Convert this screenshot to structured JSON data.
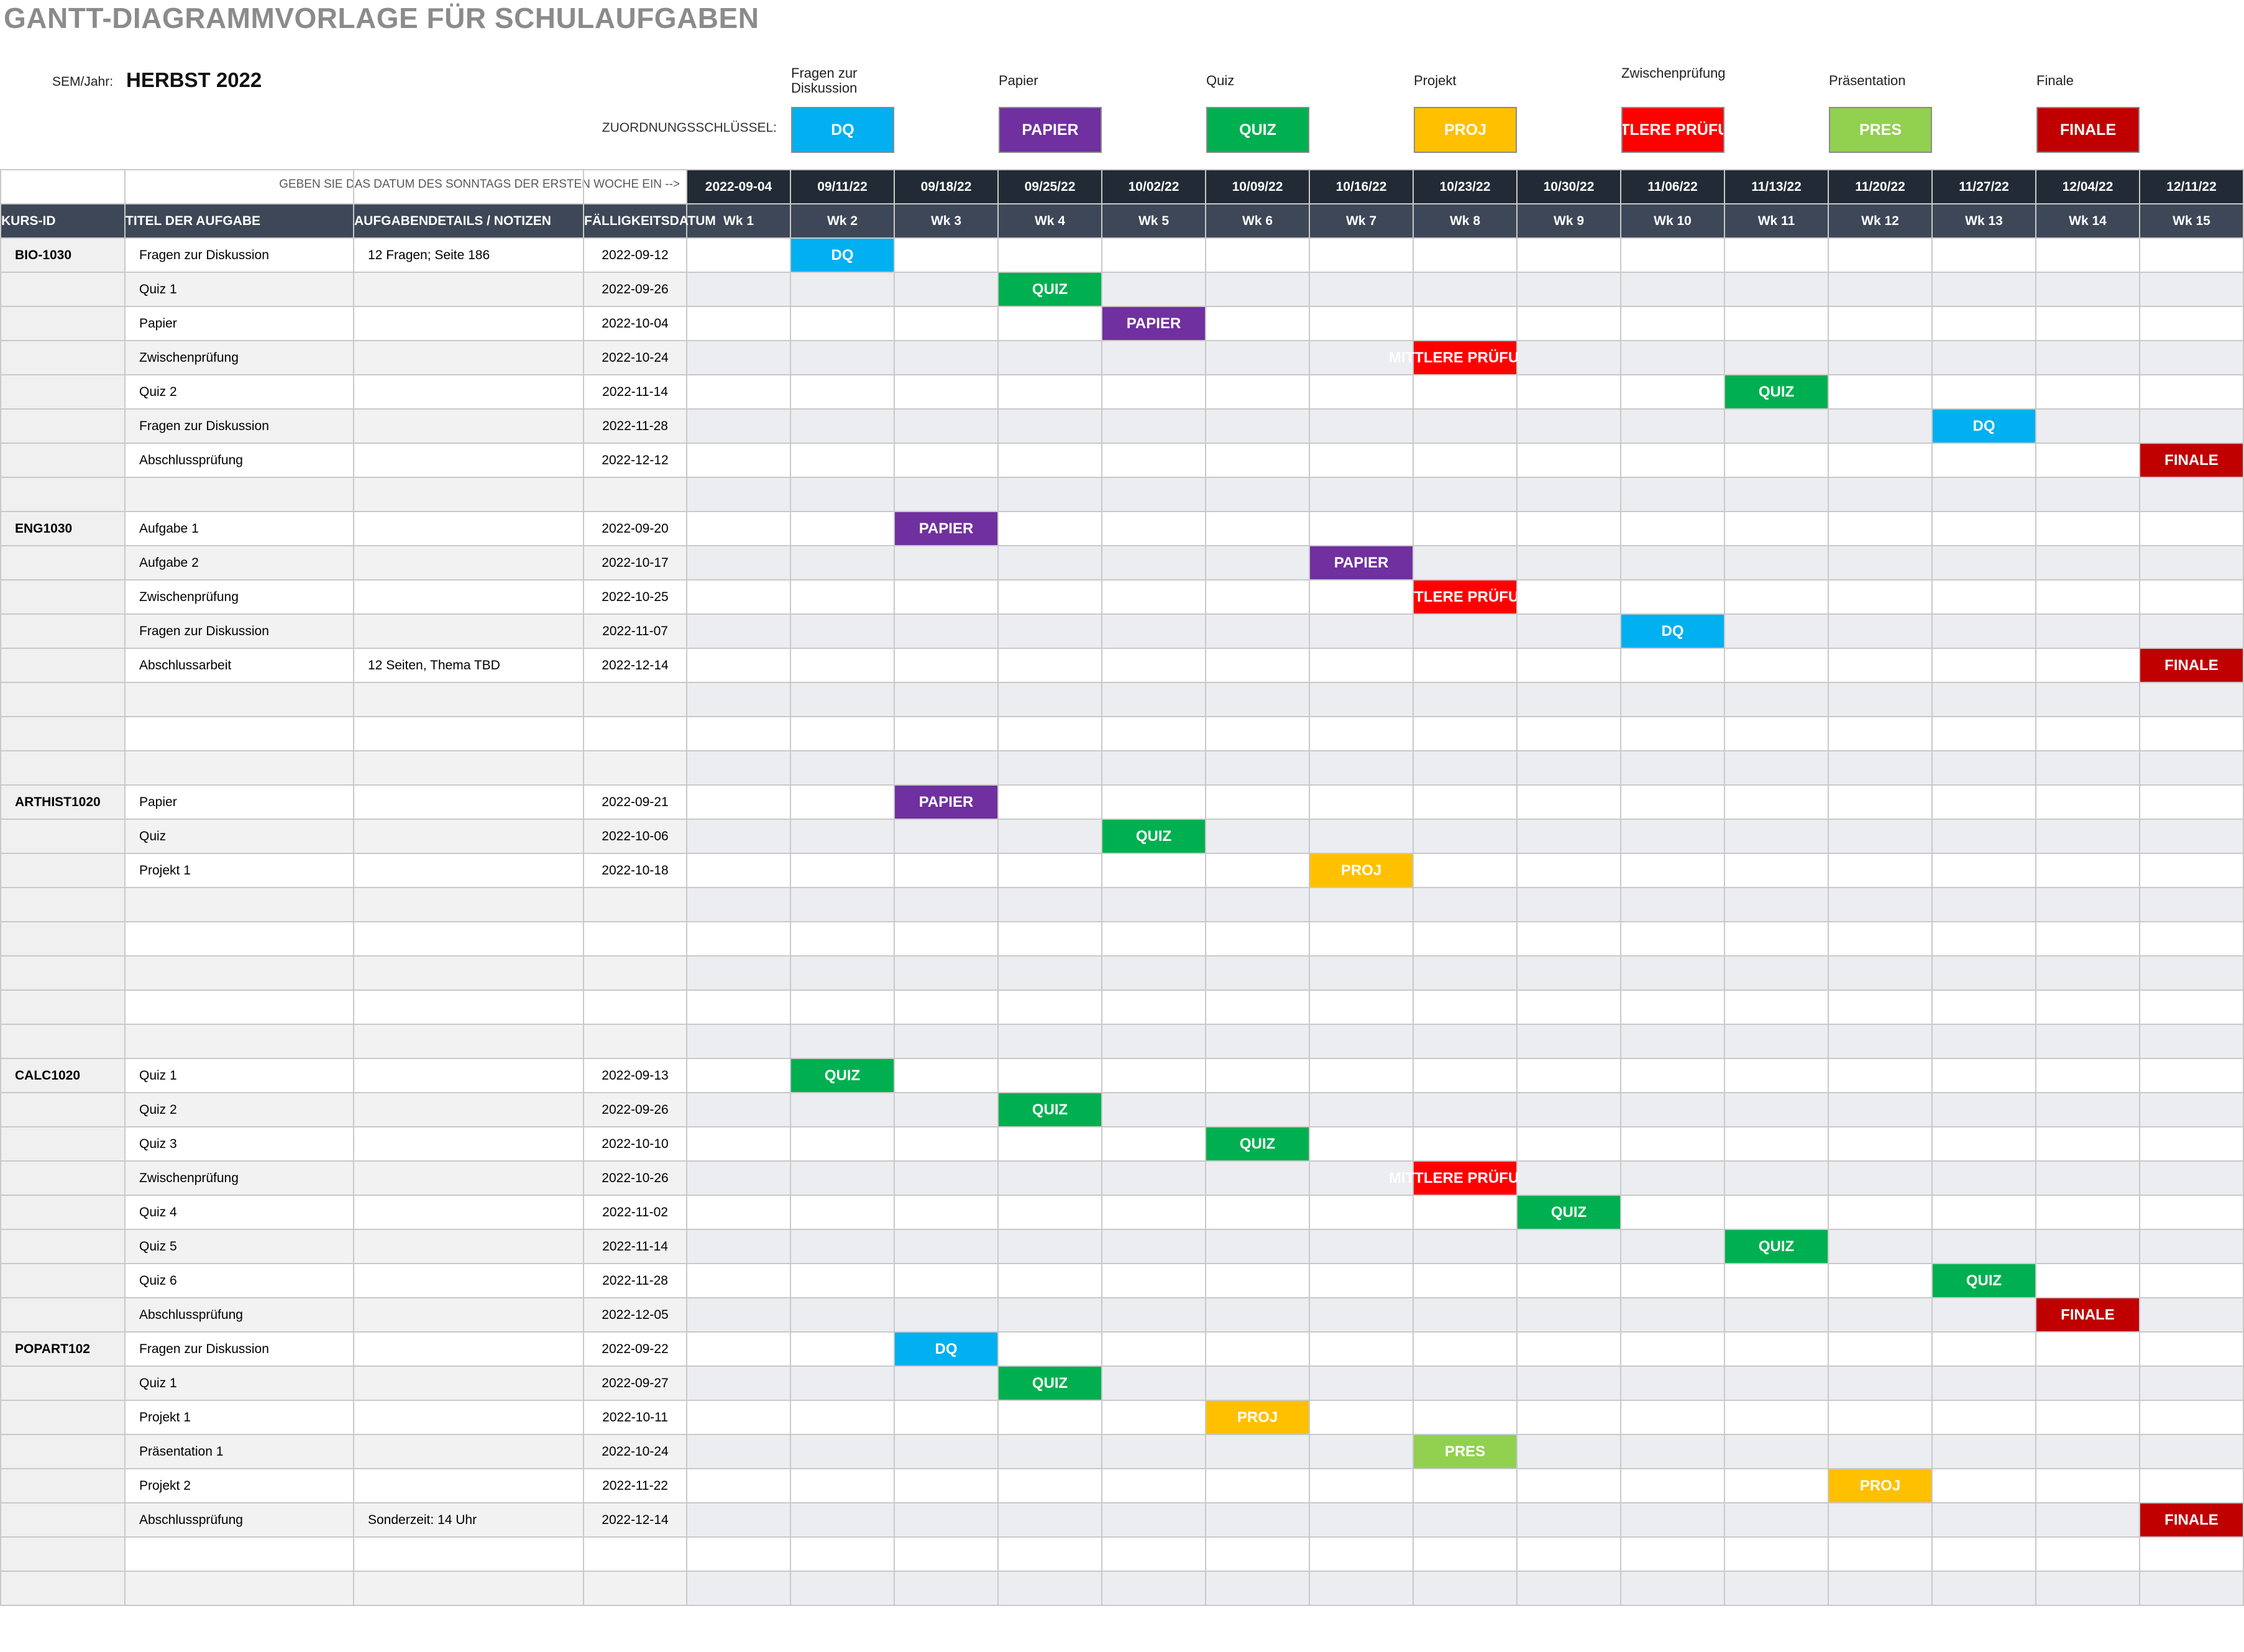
{
  "title": "GANTT-DIAGRAMMVORLAGE FÜR SCHULAUFGABEN",
  "semester_label": "SEM/Jahr:",
  "semester_value": "HERBST 2022",
  "key_label": "ZUORDNUNGSSCHLÜSSEL:",
  "week_instruction": "GEBEN SIE DAS DATUM DES SONNTAGS DER ERSTEN WOCHE EIN -->",
  "legend": [
    {
      "name": "Fragen zur Diskussion",
      "code": "DQ",
      "color": "#00b0f0"
    },
    {
      "name": "Papier",
      "code": "PAPIER",
      "color": "#7030a0"
    },
    {
      "name": "Quiz",
      "code": "QUIZ",
      "color": "#00b050"
    },
    {
      "name": "Projekt",
      "code": "PROJ",
      "color": "#ffc000"
    },
    {
      "name": "Zwischenprüfung",
      "code": "MITTLERE PRÜFUNG",
      "color": "#ff0000"
    },
    {
      "name": "Präsentation",
      "code": "PRES",
      "color": "#92d050"
    },
    {
      "name": "Finale",
      "code": "FINALE",
      "color": "#c00000"
    }
  ],
  "columns": [
    "KURS-ID",
    "TITEL DER AUFGABE",
    "AUFGABENDETAILS / NOTIZEN",
    "FÄLLIGKEITSDATUM"
  ],
  "week_dates": [
    "2022-09-04",
    "09/11/22",
    "09/18/22",
    "09/25/22",
    "10/02/22",
    "10/09/22",
    "10/16/22",
    "10/23/22",
    "10/30/22",
    "11/06/22",
    "11/13/22",
    "11/20/22",
    "11/27/22",
    "12/04/22",
    "12/11/22"
  ],
  "weeks": [
    "Wk 1",
    "Wk 2",
    "Wk 3",
    "Wk 4",
    "Wk 5",
    "Wk 6",
    "Wk 7",
    "Wk 8",
    "Wk 9",
    "Wk 10",
    "Wk 11",
    "Wk 12",
    "Wk 13",
    "Wk 14",
    "Wk 15"
  ],
  "rows": [
    {
      "course": "BIO-1030",
      "title": "Fragen zur Diskussion",
      "notes": "12 Fragen; Seite 186",
      "due": "2022-09-12",
      "week": 2,
      "type": "DQ"
    },
    {
      "course": "",
      "title": "Quiz 1",
      "notes": "",
      "due": "2022-09-26",
      "week": 4,
      "type": "QUIZ"
    },
    {
      "course": "",
      "title": "Papier",
      "notes": "",
      "due": "2022-10-04",
      "week": 5,
      "type": "PAPIER"
    },
    {
      "course": "",
      "title": "Zwischenprüfung",
      "notes": "",
      "due": "2022-10-24",
      "week": 8,
      "type": "MITTLERE PRÜFUNG"
    },
    {
      "course": "",
      "title": "Quiz 2",
      "notes": "",
      "due": "2022-11-14",
      "week": 11,
      "type": "QUIZ"
    },
    {
      "course": "",
      "title": "Fragen zur Diskussion",
      "notes": "",
      "due": "2022-11-28",
      "week": 13,
      "type": "DQ"
    },
    {
      "course": "",
      "title": "Abschlussprüfung",
      "notes": "",
      "due": "2022-12-12",
      "week": 15,
      "type": "FINALE"
    },
    {
      "course": "",
      "title": "",
      "notes": "",
      "due": "",
      "week": 0,
      "type": ""
    },
    {
      "course": "ENG1030",
      "title": "Aufgabe 1",
      "notes": "",
      "due": "2022-09-20",
      "week": 3,
      "type": "PAPIER"
    },
    {
      "course": "",
      "title": "Aufgabe 2",
      "notes": "",
      "due": "2022-10-17",
      "week": 7,
      "type": "PAPIER"
    },
    {
      "course": "",
      "title": "Zwischenprüfung",
      "notes": "",
      "due": "2022-10-25",
      "week": 8,
      "type": "MITTLERE PRÜFUNG",
      "clip": true
    },
    {
      "course": "",
      "title": "Fragen zur Diskussion",
      "notes": "",
      "due": "2022-11-07",
      "week": 10,
      "type": "DQ"
    },
    {
      "course": "",
      "title": "Abschlussarbeit",
      "notes": "12 Seiten, Thema TBD",
      "due": "2022-12-14",
      "week": 15,
      "type": "FINALE"
    },
    {
      "course": "",
      "title": "",
      "notes": "",
      "due": "",
      "week": 0,
      "type": ""
    },
    {
      "course": "",
      "title": "",
      "notes": "",
      "due": "",
      "week": 0,
      "type": ""
    },
    {
      "course": "",
      "title": "",
      "notes": "",
      "due": "",
      "week": 0,
      "type": ""
    },
    {
      "course": "ARTHIST1020",
      "title": "Papier",
      "notes": "",
      "due": "2022-09-21",
      "week": 3,
      "type": "PAPIER"
    },
    {
      "course": "",
      "title": "Quiz",
      "notes": "",
      "due": "2022-10-06",
      "week": 5,
      "type": "QUIZ"
    },
    {
      "course": "",
      "title": "Projekt 1",
      "notes": "",
      "due": "2022-10-18",
      "week": 7,
      "type": "PROJ"
    },
    {
      "course": "",
      "title": "",
      "notes": "",
      "due": "",
      "week": 0,
      "type": ""
    },
    {
      "course": "",
      "title": "",
      "notes": "",
      "due": "",
      "week": 0,
      "type": ""
    },
    {
      "course": "",
      "title": "",
      "notes": "",
      "due": "",
      "week": 0,
      "type": ""
    },
    {
      "course": "",
      "title": "",
      "notes": "",
      "due": "",
      "week": 0,
      "type": ""
    },
    {
      "course": "",
      "title": "",
      "notes": "",
      "due": "",
      "week": 0,
      "type": ""
    },
    {
      "course": "CALC1020",
      "title": "Quiz 1",
      "notes": "",
      "due": "2022-09-13",
      "week": 2,
      "type": "QUIZ"
    },
    {
      "course": "",
      "title": "Quiz 2",
      "notes": "",
      "due": "2022-09-26",
      "week": 4,
      "type": "QUIZ"
    },
    {
      "course": "",
      "title": "Quiz 3",
      "notes": "",
      "due": "2022-10-10",
      "week": 6,
      "type": "QUIZ"
    },
    {
      "course": "",
      "title": "Zwischenprüfung",
      "notes": "",
      "due": "2022-10-26",
      "week": 8,
      "type": "MITTLERE PRÜFUNG"
    },
    {
      "course": "",
      "title": "Quiz 4",
      "notes": "",
      "due": "2022-11-02",
      "week": 9,
      "type": "QUIZ"
    },
    {
      "course": "",
      "title": "Quiz 5",
      "notes": "",
      "due": "2022-11-14",
      "week": 11,
      "type": "QUIZ"
    },
    {
      "course": "",
      "title": "Quiz 6",
      "notes": "",
      "due": "2022-11-28",
      "week": 13,
      "type": "QUIZ"
    },
    {
      "course": "",
      "title": "Abschlussprüfung",
      "notes": "",
      "due": "2022-12-05",
      "week": 14,
      "type": "FINALE"
    },
    {
      "course": "POPART102",
      "title": "Fragen zur Diskussion",
      "notes": "",
      "due": "2022-09-22",
      "week": 3,
      "type": "DQ"
    },
    {
      "course": "",
      "title": "Quiz 1",
      "notes": "",
      "due": "2022-09-27",
      "week": 4,
      "type": "QUIZ"
    },
    {
      "course": "",
      "title": "Projekt 1",
      "notes": "",
      "due": "2022-10-11",
      "week": 6,
      "type": "PROJ"
    },
    {
      "course": "",
      "title": "Präsentation 1",
      "notes": "",
      "due": "2022-10-24",
      "week": 8,
      "type": "PRES"
    },
    {
      "course": "",
      "title": "Projekt 2",
      "notes": "",
      "due": "2022-11-22",
      "week": 12,
      "type": "PROJ"
    },
    {
      "course": "",
      "title": "Abschlussprüfung",
      "notes": "Sonderzeit: 14 Uhr",
      "due": "2022-12-14",
      "week": 15,
      "type": "FINALE"
    },
    {
      "course": "",
      "title": "",
      "notes": "",
      "due": "",
      "week": 0,
      "type": ""
    },
    {
      "course": "",
      "title": "",
      "notes": "",
      "due": "",
      "week": 0,
      "type": ""
    }
  ]
}
